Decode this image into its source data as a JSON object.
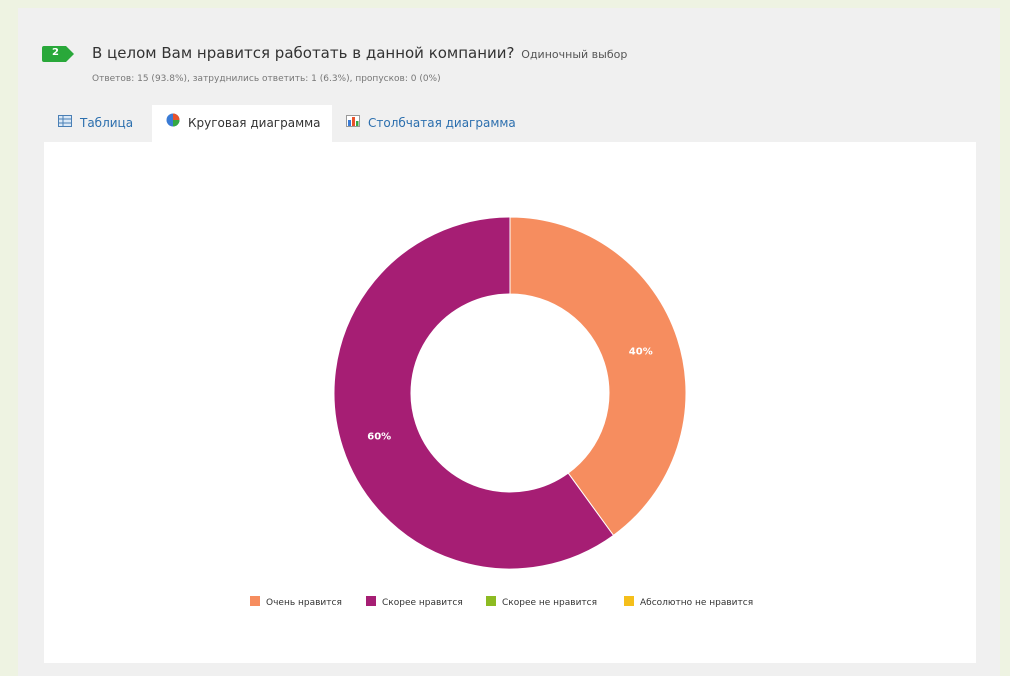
{
  "question": {
    "number": "2",
    "title": "В целом Вам нравится работать в данной компании?",
    "type": "Одиночный выбор",
    "stats": "Ответов: 15 (93.8%), затруднились ответить: 1 (6.3%), пропусков: 0 (0%)"
  },
  "tabs": [
    {
      "label": "Таблица",
      "icon": "table-icon"
    },
    {
      "label": "Круговая диаграмма",
      "icon": "pie-chart-icon",
      "active": true
    },
    {
      "label": "Столбчатая диаграмма",
      "icon": "bar-chart-icon"
    }
  ],
  "chart_data": {
    "type": "pie",
    "variant": "donut",
    "categories": [
      "Очень нравится",
      "Скорее нравится",
      "Скорее не нравится",
      "Абсолютно не нравится"
    ],
    "values": [
      40,
      60,
      0,
      0
    ],
    "labels": [
      "40%",
      "60%",
      "",
      ""
    ],
    "colors": [
      "#f68d5f",
      "#a61e74",
      "#8dbb22",
      "#f5bf1b"
    ],
    "legend_position": "bottom"
  }
}
